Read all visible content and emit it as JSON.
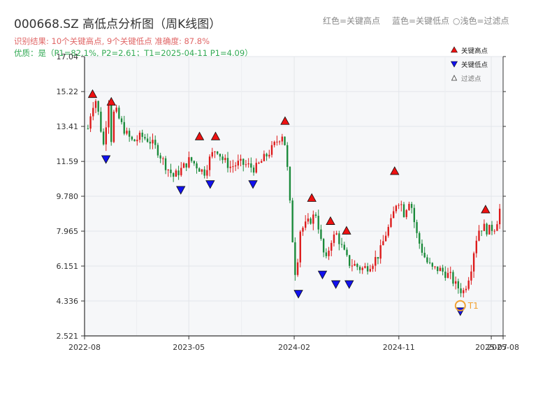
{
  "header": {
    "title": "000668.SZ 高低点分析图（周K线图）",
    "result_text": "识别结果: 10个关键高点, 9个关键低点   准确度: 87.8%",
    "quality_text": "优质：是（P1=82.1%, P2=2.61；T1=2025-04-11 P1=4.09）",
    "legend_red": "红色=关键高点",
    "legend_blue": "蓝色=关键低点",
    "legend_light": "○浅色=过滤点"
  },
  "colors": {
    "up": "#dd1a1a",
    "down": "#1a8a3a",
    "high_marker": "#ee1111",
    "low_marker": "#1111ee",
    "t1_ring": "#f0a030",
    "result_text": "#e06666",
    "quality_text": "#33aa55",
    "plot_bg": "#f6f7f9"
  },
  "chart_data": {
    "type": "candlestick",
    "title": "000668.SZ 高低点分析图（周K线图）",
    "y_ticks": [
      "2.521",
      "4.336",
      "6.151",
      "7.965",
      "9.780",
      "11.59",
      "13.41",
      "15.22",
      "17.04"
    ],
    "ylim": [
      2.521,
      17.04
    ],
    "x_ticks": [
      {
        "label": "2022-08",
        "date": "2022-08-01"
      },
      {
        "label": "2023-05",
        "date": "2023-05-01"
      },
      {
        "label": "2024-02",
        "date": "2024-02-01"
      },
      {
        "label": "2024-11",
        "date": "2024-11-01"
      },
      {
        "label": "2025-07",
        "date": "2025-07-01"
      },
      {
        "label": "2025-08",
        "date": "2025-08-01"
      }
    ],
    "xlim": [
      "2022-08-01",
      "2025-08-01"
    ],
    "grid": true,
    "legend": {
      "position": "top-right",
      "items": [
        {
          "label": "关键高点",
          "kind": "high"
        },
        {
          "label": "关键低点",
          "kind": "low"
        },
        {
          "label": "过滤点",
          "kind": "filtered"
        }
      ]
    },
    "candles_path": [
      [
        0,
        13.3
      ],
      [
        2,
        14.5
      ],
      [
        4,
        14.8
      ],
      [
        6,
        13.5
      ],
      [
        8,
        12.2
      ],
      [
        10,
        15.3
      ],
      [
        11,
        12.3
      ],
      [
        13,
        14.4
      ],
      [
        16,
        13.6
      ],
      [
        19,
        13.0
      ],
      [
        22,
        12.6
      ],
      [
        26,
        12.9
      ],
      [
        30,
        12.7
      ],
      [
        34,
        12.2
      ],
      [
        38,
        11.4
      ],
      [
        42,
        10.8
      ],
      [
        46,
        11.2
      ],
      [
        50,
        11.7
      ],
      [
        54,
        11.3
      ],
      [
        57,
        11.0
      ],
      [
        60,
        11.8
      ],
      [
        63,
        12.3
      ],
      [
        66,
        11.7
      ],
      [
        70,
        11.3
      ],
      [
        74,
        11.5
      ],
      [
        78,
        11.4
      ],
      [
        82,
        11.2
      ],
      [
        86,
        11.7
      ],
      [
        90,
        12.2
      ],
      [
        93,
        12.7
      ],
      [
        96,
        13.1
      ],
      [
        98,
        11.0
      ],
      [
        100,
        8.0
      ],
      [
        102,
        5.4
      ],
      [
        104,
        8.0
      ],
      [
        108,
        8.4
      ],
      [
        112,
        8.9
      ],
      [
        115,
        7.0
      ],
      [
        117,
        6.4
      ],
      [
        119,
        7.5
      ],
      [
        122,
        7.8
      ],
      [
        125,
        7.0
      ],
      [
        128,
        6.3
      ],
      [
        131,
        6.2
      ],
      [
        134,
        6.0
      ],
      [
        137,
        6.1
      ],
      [
        140,
        6.4
      ],
      [
        143,
        6.8
      ],
      [
        146,
        7.8
      ],
      [
        149,
        8.5
      ],
      [
        151,
        9.4
      ],
      [
        153,
        9.6
      ],
      [
        155,
        8.9
      ],
      [
        158,
        9.7
      ],
      [
        161,
        7.9
      ],
      [
        163,
        7.2
      ],
      [
        166,
        6.4
      ],
      [
        169,
        6.0
      ],
      [
        172,
        6.0
      ],
      [
        175,
        5.8
      ],
      [
        178,
        5.6
      ],
      [
        180,
        5.2
      ],
      [
        182,
        5.0
      ],
      [
        184,
        4.8
      ],
      [
        186,
        5.3
      ],
      [
        188,
        6.1
      ],
      [
        190,
        7.4
      ],
      [
        192,
        8.1
      ],
      [
        194,
        8.2
      ],
      [
        196,
        8.0
      ],
      [
        198,
        8.1
      ],
      [
        200,
        8.2
      ],
      [
        202,
        9.1
      ]
    ],
    "key_highs": [
      {
        "date": "2022-08-22",
        "value": 14.8
      },
      {
        "date": "2022-10-10",
        "value": 14.4
      },
      {
        "date": "2023-05-29",
        "value": 12.6
      },
      {
        "date": "2023-07-10",
        "value": 12.6
      },
      {
        "date": "2024-01-08",
        "value": 13.4
      },
      {
        "date": "2024-03-18",
        "value": 9.4
      },
      {
        "date": "2024-05-06",
        "value": 8.2
      },
      {
        "date": "2024-06-17",
        "value": 7.7
      },
      {
        "date": "2024-10-21",
        "value": 10.8
      },
      {
        "date": "2025-06-16",
        "value": 8.8
      }
    ],
    "key_lows": [
      {
        "date": "2022-09-26",
        "value": 12.0
      },
      {
        "date": "2023-04-10",
        "value": 10.4
      },
      {
        "date": "2023-06-26",
        "value": 10.7
      },
      {
        "date": "2023-10-16",
        "value": 10.7
      },
      {
        "date": "2024-02-12",
        "value": 5.0
      },
      {
        "date": "2024-04-15",
        "value": 6.0
      },
      {
        "date": "2024-05-20",
        "value": 5.5
      },
      {
        "date": "2024-06-24",
        "value": 5.5
      },
      {
        "date": "2025-04-11",
        "value": 4.09
      }
    ],
    "t1_annotation": {
      "label": "T1",
      "date": "2025-04-11",
      "value": 4.09
    }
  }
}
